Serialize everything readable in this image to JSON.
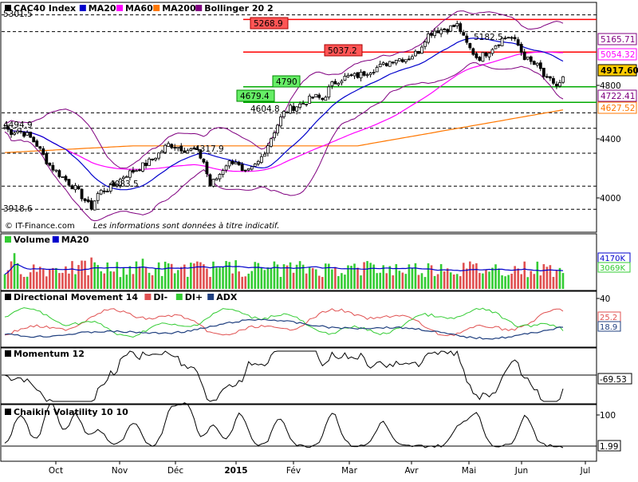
{
  "chart_data": {
    "type": "financial-panels",
    "source": "© IT-Finance.com",
    "disclaimer": "Les informations sont données à titre indicatif.",
    "x_labels": [
      "Oct",
      "Nov",
      "Déc",
      "2015",
      "Fév",
      "Mar",
      "Avr",
      "Mai",
      "Jun",
      "Jul"
    ],
    "colors": {
      "ma20": "#0000cc",
      "ma60": "#ff00ff",
      "ma200": "#ff7700",
      "bollinger": "#800080",
      "up": "#33cc33",
      "down": "#e05050",
      "di_minus": "#e05050",
      "di_plus": "#33cc33",
      "adx": "#1f3f7f",
      "black": "#000000",
      "resistance": "#ff0000",
      "support": "#00aa00"
    },
    "price_panel": {
      "legend": [
        {
          "name": "CAC40 Index",
          "color": "#000000"
        },
        {
          "name": "MA20",
          "color": "#0000cc"
        },
        {
          "name": "MA60",
          "color": "#ff00ff"
        },
        {
          "name": "MA200",
          "color": "#ff7700"
        },
        {
          "name": "Bollinger 20 2",
          "color": "#800080"
        }
      ],
      "y_ticks": [
        "4800",
        "4400",
        "4000"
      ],
      "axis_tags": [
        {
          "value": "5165.71",
          "color": "#800080",
          "bg": "#ffffff"
        },
        {
          "value": "5054.32",
          "color": "#ff00ff",
          "bg": "#ffffff"
        },
        {
          "value": "4917.60",
          "color": "#000000",
          "bg": "#ffcc00"
        },
        {
          "value": "4722.41",
          "color": "#800080",
          "bg": "#ffffff"
        },
        {
          "value": "4627.52",
          "color": "#ff7700",
          "bg": "#ffffff"
        }
      ],
      "level_labels": [
        {
          "text": "5268.9",
          "kind": "resistance"
        },
        {
          "text": "5037.2",
          "kind": "resistance"
        },
        {
          "text": "4790",
          "kind": "support"
        },
        {
          "text": "4679.4",
          "kind": "support"
        },
        {
          "text": "5182.5",
          "kind": "plain"
        },
        {
          "text": "4604.8",
          "kind": "plain"
        },
        {
          "text": "4494.9",
          "kind": "plain"
        },
        {
          "text": "4317.9",
          "kind": "plain"
        },
        {
          "text": "4083.5",
          "kind": "plain"
        },
        {
          "text": "3918.6",
          "kind": "plain"
        },
        {
          "text": "5301.5",
          "kind": "plain"
        }
      ]
    },
    "volume_panel": {
      "legend": [
        {
          "name": "Volume",
          "color": "#33cc33"
        },
        {
          "name": "MA20",
          "color": "#0000cc"
        }
      ],
      "axis_tags": [
        {
          "value": "4170K",
          "color": "#0000cc"
        },
        {
          "value": "3069K",
          "color": "#33cc33"
        }
      ]
    },
    "dmi_panel": {
      "legend": [
        {
          "name": "Directional Movement 14",
          "color": "#000000"
        },
        {
          "name": "DI-",
          "color": "#e05050"
        },
        {
          "name": "DI+",
          "color": "#33cc33"
        },
        {
          "name": "ADX",
          "color": "#1f3f7f"
        }
      ],
      "y_ticks": [
        "40"
      ],
      "axis_tags": [
        {
          "value": "25.2",
          "color": "#e05050"
        },
        {
          "value": "18.9",
          "color": "#1f3f7f"
        }
      ]
    },
    "momentum_panel": {
      "legend": [
        {
          "name": "Momentum 12",
          "color": "#000000"
        }
      ],
      "axis_tags": [
        {
          "value": "-69.53",
          "color": "#000000"
        }
      ]
    },
    "chaikin_panel": {
      "legend": [
        {
          "name": "Chaikin Volatility 10 10",
          "color": "#000000"
        }
      ],
      "y_ticks": [
        "100"
      ],
      "axis_tags": [
        {
          "value": "1.99",
          "color": "#000000"
        }
      ]
    }
  }
}
